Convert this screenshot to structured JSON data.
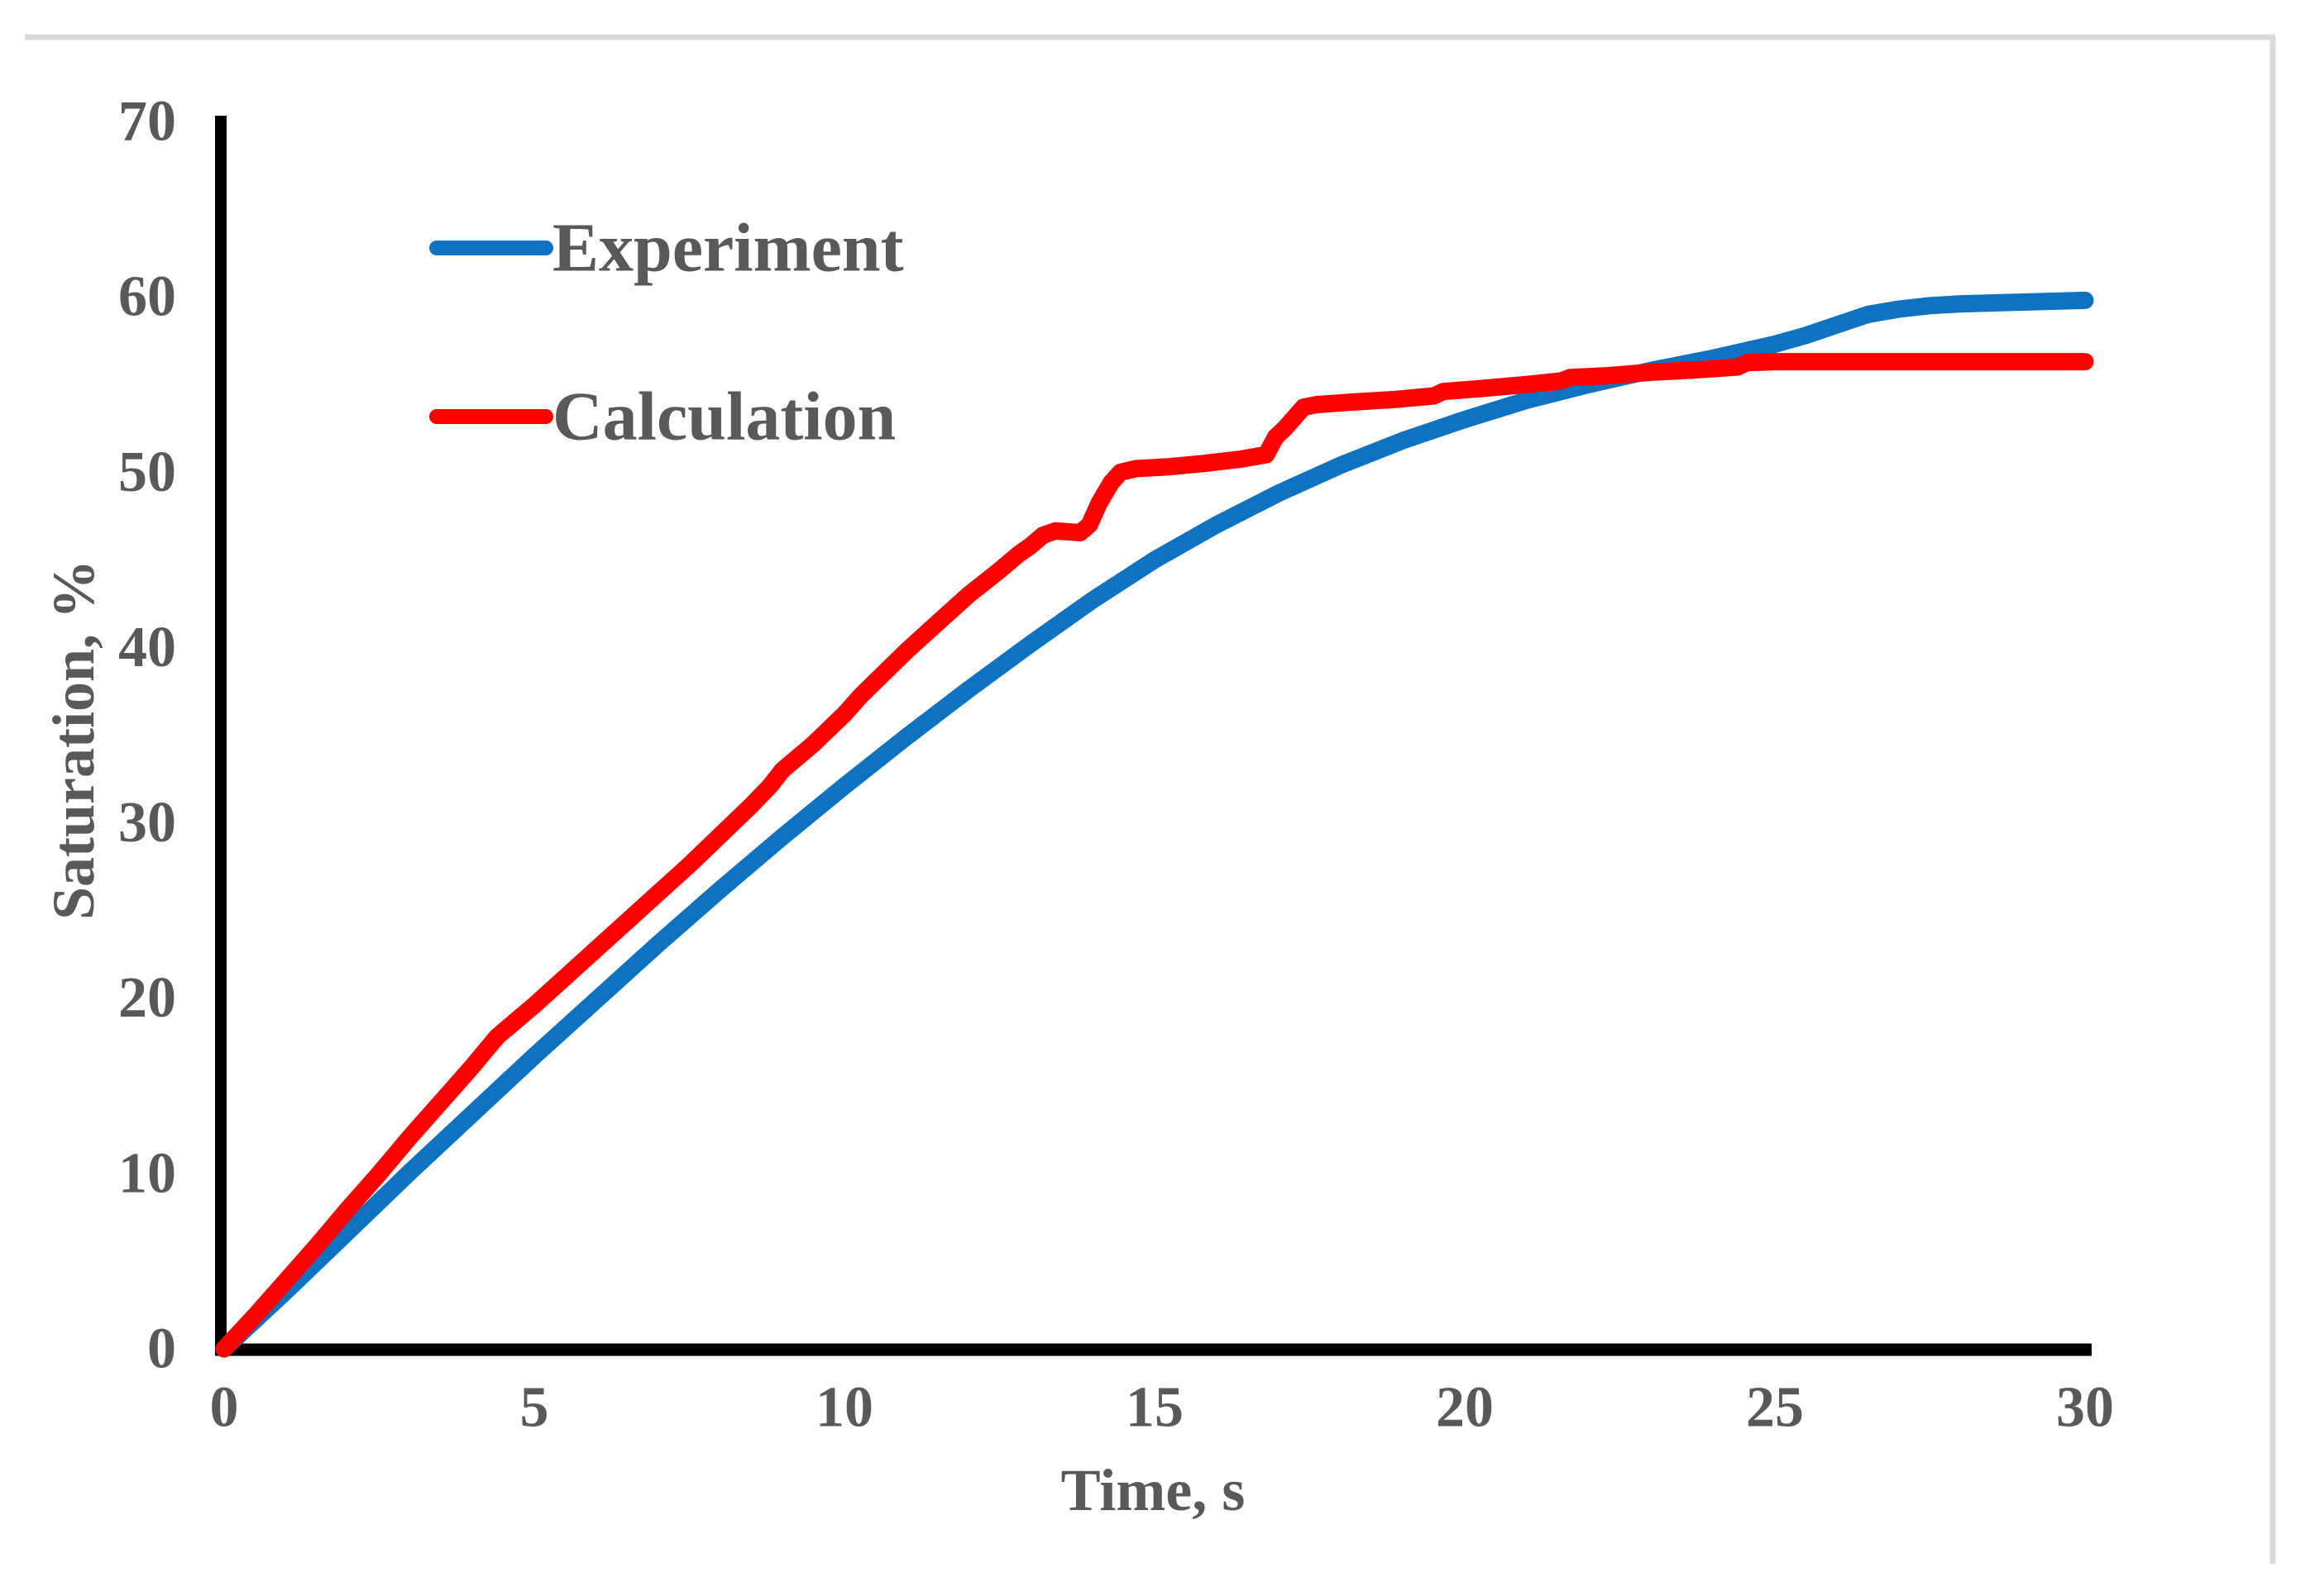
{
  "figure": {
    "background": "#ffffff",
    "border_color": "#d9d9d9",
    "text_color": "#595959",
    "axis_color": "#000000"
  },
  "legend": {
    "items": [
      {
        "label": "Experiment",
        "color": "#0d72c2"
      },
      {
        "label": "Calculation",
        "color": "#ff0000"
      }
    ]
  },
  "chart_data": {
    "type": "line",
    "title": "",
    "xlabel": "Time, s",
    "ylabel": "Saturation, %",
    "xlim": [
      0,
      30
    ],
    "ylim": [
      0,
      70
    ],
    "x_ticks": [
      0,
      5,
      10,
      15,
      20,
      25,
      30
    ],
    "y_ticks": [
      0,
      10,
      20,
      30,
      40,
      50,
      60,
      70
    ],
    "grid": false,
    "legend_position": "inside-top-left",
    "series": [
      {
        "name": "Experiment",
        "color": "#0d72c2",
        "points": [
          [
            0,
            0
          ],
          [
            1,
            3.3
          ],
          [
            2,
            6.7
          ],
          [
            3,
            10.1
          ],
          [
            4,
            13.4
          ],
          [
            5,
            16.7
          ],
          [
            6,
            19.9
          ],
          [
            7,
            23.1
          ],
          [
            8,
            26.2
          ],
          [
            9,
            29.2
          ],
          [
            10,
            32.1
          ],
          [
            11,
            34.9
          ],
          [
            12,
            37.6
          ],
          [
            13,
            40.2
          ],
          [
            14,
            42.7
          ],
          [
            15,
            45.0
          ],
          [
            16,
            47.0
          ],
          [
            17,
            48.8
          ],
          [
            18,
            50.4
          ],
          [
            19,
            51.8
          ],
          [
            20,
            53.0
          ],
          [
            21,
            54.1
          ],
          [
            22,
            55.0
          ],
          [
            23,
            55.8
          ],
          [
            24,
            56.5
          ],
          [
            25,
            57.3
          ],
          [
            25.5,
            57.8
          ],
          [
            26,
            58.4
          ],
          [
            26.5,
            59.0
          ],
          [
            27,
            59.3
          ],
          [
            27.5,
            59.5
          ],
          [
            28,
            59.6
          ],
          [
            29,
            59.7
          ],
          [
            30,
            59.8
          ]
        ]
      },
      {
        "name": "Calculation",
        "color": "#ff0000",
        "points": [
          [
            0,
            0
          ],
          [
            0.5,
            1.9
          ],
          [
            1,
            3.9
          ],
          [
            1.5,
            5.9
          ],
          [
            2,
            8.0
          ],
          [
            2.5,
            10.0
          ],
          [
            3,
            12.1
          ],
          [
            3.5,
            14.1
          ],
          [
            4,
            16.1
          ],
          [
            4.4,
            17.8
          ],
          [
            5,
            19.6
          ],
          [
            5.5,
            21.2
          ],
          [
            6,
            22.8
          ],
          [
            6.5,
            24.4
          ],
          [
            7,
            26.0
          ],
          [
            7.5,
            27.6
          ],
          [
            8,
            29.3
          ],
          [
            8.5,
            31.0
          ],
          [
            8.8,
            32.1
          ],
          [
            9.0,
            33.0
          ],
          [
            9.5,
            34.5
          ],
          [
            10,
            36.2
          ],
          [
            10.25,
            37.2
          ],
          [
            10.45,
            37.9
          ],
          [
            11,
            39.8
          ],
          [
            11.5,
            41.4
          ],
          [
            12,
            43.0
          ],
          [
            12.5,
            44.4
          ],
          [
            12.8,
            45.3
          ],
          [
            13.0,
            45.8
          ],
          [
            13.2,
            46.4
          ],
          [
            13.4,
            46.65
          ],
          [
            13.6,
            46.6
          ],
          [
            13.8,
            46.55
          ],
          [
            13.95,
            47.0
          ],
          [
            14.1,
            48.2
          ],
          [
            14.3,
            49.4
          ],
          [
            14.45,
            50.0
          ],
          [
            14.7,
            50.2
          ],
          [
            15.2,
            50.3
          ],
          [
            15.8,
            50.5
          ],
          [
            16.4,
            50.75
          ],
          [
            16.8,
            51.0
          ],
          [
            16.95,
            52.0
          ],
          [
            17.1,
            52.5
          ],
          [
            17.25,
            53.1
          ],
          [
            17.4,
            53.7
          ],
          [
            17.6,
            53.85
          ],
          [
            18.2,
            54.0
          ],
          [
            18.9,
            54.15
          ],
          [
            19.5,
            54.35
          ],
          [
            19.65,
            54.6
          ],
          [
            20.2,
            54.75
          ],
          [
            21,
            55.0
          ],
          [
            21.55,
            55.2
          ],
          [
            21.7,
            55.4
          ],
          [
            22.3,
            55.5
          ],
          [
            23,
            55.7
          ],
          [
            23.8,
            55.85
          ],
          [
            24.4,
            56.0
          ],
          [
            24.55,
            56.25
          ],
          [
            25,
            56.3
          ],
          [
            26,
            56.3
          ],
          [
            27,
            56.3
          ],
          [
            28,
            56.3
          ],
          [
            29,
            56.3
          ],
          [
            30,
            56.3
          ]
        ]
      }
    ]
  }
}
